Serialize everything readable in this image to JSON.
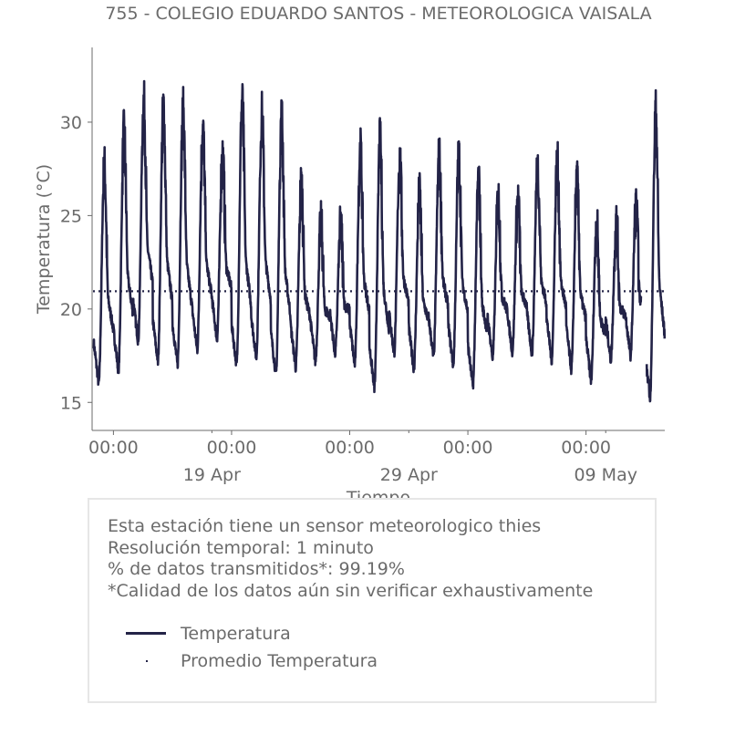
{
  "chart_data": {
    "type": "line",
    "title": "755 - COLEGIO EDUARDO SANTOS - METEOROLOGICA VAISALA",
    "xlabel": "Tiempo",
    "ylabel": "Temperatura (°C)",
    "ylim": [
      13.5,
      34
    ],
    "yticks": [
      15,
      20,
      25,
      30
    ],
    "xrange": [
      "2024-04-12T22:00",
      "2024-05-12T00:00"
    ],
    "xticks": [
      {
        "t": "2024-04-14T00:00",
        "label": "00:00",
        "sublabel": ""
      },
      {
        "t": "2024-04-20T00:00",
        "label": "00:00",
        "sublabel": "19 Apr"
      },
      {
        "t": "2024-04-26T00:00",
        "label": "00:00",
        "sublabel": ""
      },
      {
        "t": "2024-05-02T00:00",
        "label": "00:00",
        "sublabel": "29 Apr"
      },
      {
        "t": "2024-05-08T00:00",
        "label": "00:00",
        "sublabel": "09 May"
      }
    ],
    "minor_ticks": [
      "2024-04-19T00:00",
      "2024-04-29T00:00",
      "2024-05-09T00:00"
    ],
    "grid": false,
    "series": [
      {
        "name": "Temperatura",
        "color": "#232347",
        "style": "solid",
        "daily": [
          {
            "date": "2024-04-13",
            "min": 16.0,
            "max": 27.6
          },
          {
            "date": "2024-04-14",
            "min": 16.7,
            "max": 29.5
          },
          {
            "date": "2024-04-15",
            "min": 18.3,
            "max": 31.1
          },
          {
            "date": "2024-04-16",
            "min": 17.2,
            "max": 30.8
          },
          {
            "date": "2024-04-17",
            "min": 17.0,
            "max": 30.6
          },
          {
            "date": "2024-04-18",
            "min": 17.8,
            "max": 29.6
          },
          {
            "date": "2024-04-19",
            "min": 18.4,
            "max": 28.3
          },
          {
            "date": "2024-04-20",
            "min": 17.0,
            "max": 31.1
          },
          {
            "date": "2024-04-21",
            "min": 17.4,
            "max": 30.4
          },
          {
            "date": "2024-04-22",
            "min": 16.5,
            "max": 30.3
          },
          {
            "date": "2024-04-23",
            "min": 16.9,
            "max": 26.7
          },
          {
            "date": "2024-04-24",
            "min": 17.2,
            "max": 24.5
          },
          {
            "date": "2024-04-25",
            "min": 17.6,
            "max": 24.4
          },
          {
            "date": "2024-04-26",
            "min": 17.0,
            "max": 28.5
          },
          {
            "date": "2024-04-27",
            "min": 15.8,
            "max": 29.0
          },
          {
            "date": "2024-04-28",
            "min": 17.6,
            "max": 28.0
          },
          {
            "date": "2024-04-29",
            "min": 16.8,
            "max": 26.1
          },
          {
            "date": "2024-04-30",
            "min": 17.4,
            "max": 28.1
          },
          {
            "date": "2024-05-01",
            "min": 17.0,
            "max": 28.1
          },
          {
            "date": "2024-05-02",
            "min": 15.9,
            "max": 26.9
          },
          {
            "date": "2024-05-03",
            "min": 17.4,
            "max": 25.9
          },
          {
            "date": "2024-05-04",
            "min": 17.7,
            "max": 25.8
          },
          {
            "date": "2024-05-05",
            "min": 17.6,
            "max": 27.6
          },
          {
            "date": "2024-05-06",
            "min": 17.3,
            "max": 27.8
          },
          {
            "date": "2024-05-07",
            "min": 16.8,
            "max": 26.8
          },
          {
            "date": "2024-05-08",
            "min": 16.2,
            "max": 24.5
          },
          {
            "date": "2024-05-09",
            "min": 17.3,
            "max": 24.5
          },
          {
            "date": "2024-05-10",
            "min": 17.5,
            "max": 25.4
          },
          {
            "date": "2024-05-11",
            "min": 15.3,
            "max": 30.5
          }
        ]
      },
      {
        "name": "Promedio Temperatura",
        "color": "#232347",
        "style": "dotted",
        "value": 20.95
      }
    ]
  },
  "info": {
    "line1": "Esta estación tiene un sensor meteorologico thies",
    "line2": "Resolución temporal: 1 minuto",
    "line3": "% de datos transmitidos*: 99.19%",
    "line4": "*Calidad de los datos aún sin verificar exhaustivamente"
  },
  "legend": {
    "items": [
      "Temperatura",
      "Promedio Temperatura"
    ]
  }
}
